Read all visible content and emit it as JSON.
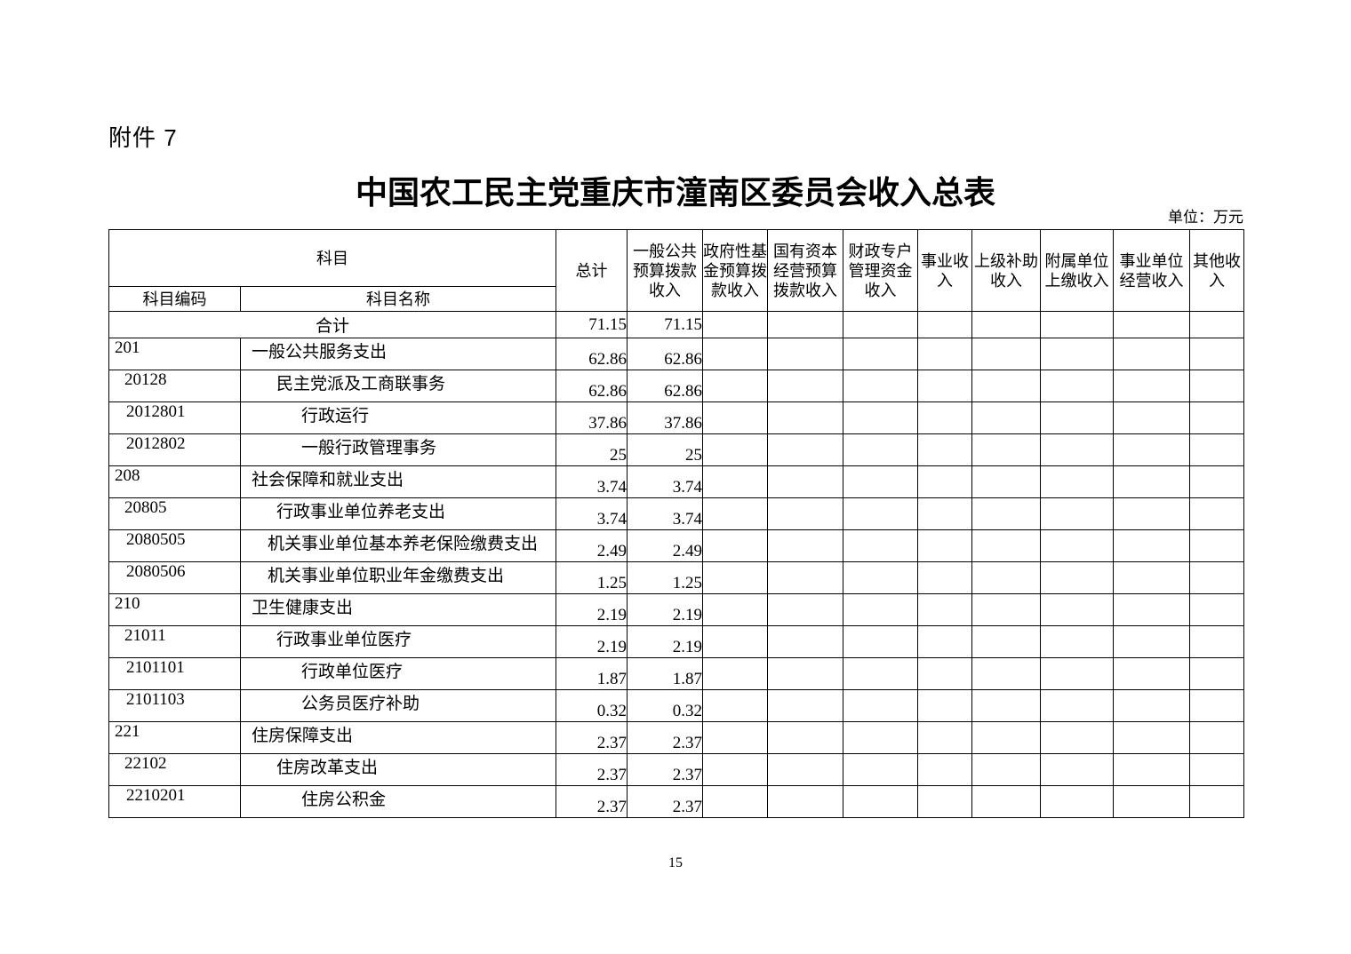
{
  "page": {
    "attachment_label": "附件 7",
    "title": "中国农工民主党重庆市潼南区委员会收入总表",
    "unit_note": "单位：万元",
    "page_number": "15"
  },
  "table": {
    "header": {
      "subject": "科目",
      "subject_code": "科目编码",
      "subject_name": "科目名称",
      "columns": [
        "总计",
        "一般公共预算拨款收入",
        "政府性基金预算拨款收入",
        "国有资本经营预算拨款收入",
        "财政专户管理资金收入",
        "事业收入",
        "上级补助收入",
        "附属单位上缴收入",
        "事业单位经营收入",
        "其他收入"
      ]
    },
    "total_row": {
      "label": "合计",
      "values": [
        "71.15",
        "71.15",
        "",
        "",
        "",
        "",
        "",
        "",
        "",
        ""
      ]
    },
    "rows": [
      {
        "code": "201",
        "name": "一般公共服务支出",
        "level": 1,
        "values": [
          "62.86",
          "62.86",
          "",
          "",
          "",
          "",
          "",
          "",
          "",
          ""
        ]
      },
      {
        "code": "20128",
        "name": "民主党派及工商联事务",
        "level": 2,
        "values": [
          "62.86",
          "62.86",
          "",
          "",
          "",
          "",
          "",
          "",
          "",
          ""
        ]
      },
      {
        "code": "2012801",
        "name": "行政运行",
        "level": 3,
        "values": [
          "37.86",
          "37.86",
          "",
          "",
          "",
          "",
          "",
          "",
          "",
          ""
        ]
      },
      {
        "code": "2012802",
        "name": "一般行政管理事务",
        "level": 3,
        "values": [
          "25",
          "25",
          "",
          "",
          "",
          "",
          "",
          "",
          "",
          ""
        ]
      },
      {
        "code": "208",
        "name": "社会保障和就业支出",
        "level": 1,
        "values": [
          "3.74",
          "3.74",
          "",
          "",
          "",
          "",
          "",
          "",
          "",
          ""
        ]
      },
      {
        "code": "20805",
        "name": "行政事业单位养老支出",
        "level": 2,
        "values": [
          "3.74",
          "3.74",
          "",
          "",
          "",
          "",
          "",
          "",
          "",
          ""
        ]
      },
      {
        "code": "2080505",
        "name": "机关事业单位基本养老保险缴费支出",
        "level": 3,
        "values": [
          "2.49",
          "2.49",
          "",
          "",
          "",
          "",
          "",
          "",
          "",
          ""
        ]
      },
      {
        "code": "2080506",
        "name": "机关事业单位职业年金缴费支出",
        "level": 3,
        "values": [
          "1.25",
          "1.25",
          "",
          "",
          "",
          "",
          "",
          "",
          "",
          ""
        ]
      },
      {
        "code": "210",
        "name": "卫生健康支出",
        "level": 1,
        "values": [
          "2.19",
          "2.19",
          "",
          "",
          "",
          "",
          "",
          "",
          "",
          ""
        ]
      },
      {
        "code": "21011",
        "name": "行政事业单位医疗",
        "level": 2,
        "values": [
          "2.19",
          "2.19",
          "",
          "",
          "",
          "",
          "",
          "",
          "",
          ""
        ]
      },
      {
        "code": "2101101",
        "name": "行政单位医疗",
        "level": 3,
        "values": [
          "1.87",
          "1.87",
          "",
          "",
          "",
          "",
          "",
          "",
          "",
          ""
        ]
      },
      {
        "code": "2101103",
        "name": "公务员医疗补助",
        "level": 3,
        "values": [
          "0.32",
          "0.32",
          "",
          "",
          "",
          "",
          "",
          "",
          "",
          ""
        ]
      },
      {
        "code": "221",
        "name": "住房保障支出",
        "level": 1,
        "values": [
          "2.37",
          "2.37",
          "",
          "",
          "",
          "",
          "",
          "",
          "",
          ""
        ]
      },
      {
        "code": "22102",
        "name": "住房改革支出",
        "level": 2,
        "values": [
          "2.37",
          "2.37",
          "",
          "",
          "",
          "",
          "",
          "",
          "",
          ""
        ]
      },
      {
        "code": "2210201",
        "name": "住房公积金",
        "level": 3,
        "values": [
          "2.37",
          "2.37",
          "",
          "",
          "",
          "",
          "",
          "",
          "",
          ""
        ]
      }
    ]
  }
}
